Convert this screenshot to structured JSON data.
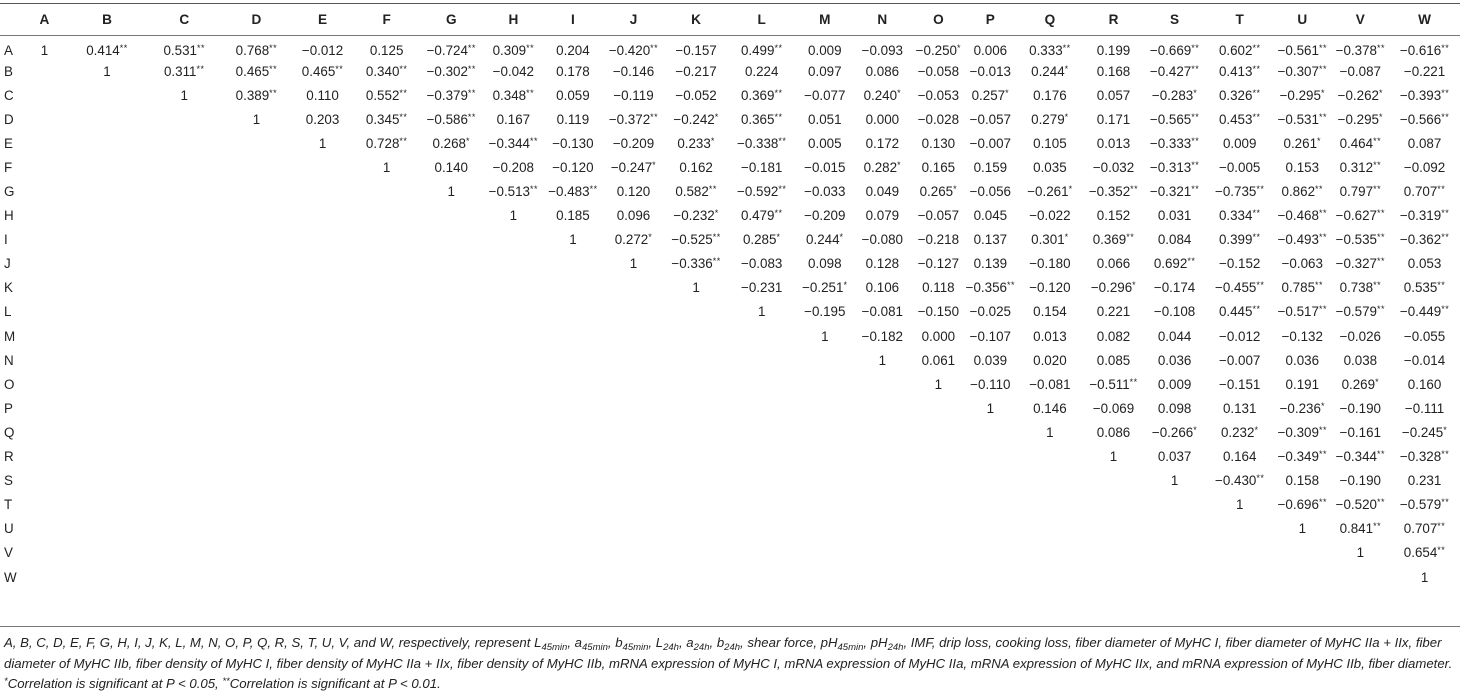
{
  "table": {
    "headers": [
      "",
      "A",
      "B",
      "C",
      "D",
      "E",
      "F",
      "G",
      "H",
      "I",
      "J",
      "K",
      "L",
      "M",
      "N",
      "O",
      "P",
      "Q",
      "R",
      "S",
      "T",
      "U",
      "V",
      "W"
    ],
    "rows": [
      {
        "label": "A",
        "cells": [
          "1",
          "0.414**",
          "0.531**",
          "0.768**",
          "−0.012",
          "0.125",
          "−0.724**",
          "0.309**",
          "0.204",
          "−0.420**",
          "−0.157",
          "0.499**",
          "0.009",
          "−0.093",
          "−0.250*",
          "0.006",
          "0.333**",
          "0.199",
          "−0.669**",
          "0.602**",
          "−0.561**",
          "−0.378**",
          "−0.616**"
        ]
      },
      {
        "label": "B",
        "cells": [
          "",
          "1",
          "0.311**",
          "0.465**",
          "0.465**",
          "0.340**",
          "−0.302**",
          "−0.042",
          "0.178",
          "−0.146",
          "−0.217",
          "0.224",
          "0.097",
          "0.086",
          "−0.058",
          "−0.013",
          "0.244*",
          "0.168",
          "−0.427**",
          "0.413**",
          "−0.307**",
          "−0.087",
          "−0.221"
        ]
      },
      {
        "label": "C",
        "cells": [
          "",
          "",
          "1",
          "0.389**",
          "0.110",
          "0.552**",
          "−0.379**",
          "0.348**",
          "0.059",
          "−0.119",
          "−0.052",
          "0.369**",
          "−0.077",
          "0.240*",
          "−0.053",
          "0.257*",
          "0.176",
          "0.057",
          "−0.283*",
          "0.326**",
          "−0.295*",
          "−0.262*",
          "−0.393**"
        ]
      },
      {
        "label": "D",
        "cells": [
          "",
          "",
          "",
          "1",
          "0.203",
          "0.345**",
          "−0.586**",
          "0.167",
          "0.119",
          "−0.372**",
          "−0.242*",
          "0.365**",
          "0.051",
          "0.000",
          "−0.028",
          "−0.057",
          "0.279*",
          "0.171",
          "−0.565**",
          "0.453**",
          "−0.531**",
          "−0.295*",
          "−0.566**"
        ]
      },
      {
        "label": "E",
        "cells": [
          "",
          "",
          "",
          "",
          "1",
          "0.728**",
          "0.268*",
          "−0.344**",
          "−0.130",
          "−0.209",
          "0.233*",
          "−0.338**",
          "0.005",
          "0.172",
          "0.130",
          "−0.007",
          "0.105",
          "0.013",
          "−0.333**",
          "0.009",
          "0.261*",
          "0.464**",
          "0.087"
        ]
      },
      {
        "label": "F",
        "cells": [
          "",
          "",
          "",
          "",
          "",
          "1",
          "0.140",
          "−0.208",
          "−0.120",
          "−0.247*",
          "0.162",
          "−0.181",
          "−0.015",
          "0.282*",
          "0.165",
          "0.159",
          "0.035",
          "−0.032",
          "−0.313**",
          "−0.005",
          "0.153",
          "0.312**",
          "−0.092"
        ]
      },
      {
        "label": "G",
        "cells": [
          "",
          "",
          "",
          "",
          "",
          "",
          "1",
          "−0.513**",
          "−0.483**",
          "0.120",
          "0.582**",
          "−0.592**",
          "−0.033",
          "0.049",
          "0.265*",
          "−0.056",
          "−0.261*",
          "−0.352**",
          "−0.321**",
          "−0.735**",
          "0.862**",
          "0.797**",
          "0.707**"
        ]
      },
      {
        "label": "H",
        "cells": [
          "",
          "",
          "",
          "",
          "",
          "",
          "",
          "1",
          "0.185",
          "0.096",
          "−0.232*",
          "0.479**",
          "−0.209",
          "0.079",
          "−0.057",
          "0.045",
          "−0.022",
          "0.152",
          "0.031",
          "0.334**",
          "−0.468**",
          "−0.627**",
          "−0.319**"
        ]
      },
      {
        "label": "I",
        "cells": [
          "",
          "",
          "",
          "",
          "",
          "",
          "",
          "",
          "1",
          "0.272*",
          "−0.525**",
          "0.285*",
          "0.244*",
          "−0.080",
          "−0.218",
          "0.137",
          "0.301*",
          "0.369**",
          "0.084",
          "0.399**",
          "−0.493**",
          "−0.535**",
          "−0.362**"
        ]
      },
      {
        "label": "J",
        "cells": [
          "",
          "",
          "",
          "",
          "",
          "",
          "",
          "",
          "",
          "1",
          "−0.336**",
          "−0.083",
          "0.098",
          "0.128",
          "−0.127",
          "0.139",
          "−0.180",
          "0.066",
          "0.692**",
          "−0.152",
          "−0.063",
          "−0.327**",
          "0.053"
        ]
      },
      {
        "label": "K",
        "cells": [
          "",
          "",
          "",
          "",
          "",
          "",
          "",
          "",
          "",
          "",
          "1",
          "−0.231",
          "−0.251*",
          "0.106",
          "0.118",
          "−0.356**",
          "−0.120",
          "−0.296*",
          "−0.174",
          "−0.455**",
          "0.785**",
          "0.738**",
          "0.535**"
        ]
      },
      {
        "label": "L",
        "cells": [
          "",
          "",
          "",
          "",
          "",
          "",
          "",
          "",
          "",
          "",
          "",
          "1",
          "−0.195",
          "−0.081",
          "−0.150",
          "−0.025",
          "0.154",
          "0.221",
          "−0.108",
          "0.445**",
          "−0.517**",
          "−0.579**",
          "−0.449**"
        ]
      },
      {
        "label": "M",
        "cells": [
          "",
          "",
          "",
          "",
          "",
          "",
          "",
          "",
          "",
          "",
          "",
          "",
          "1",
          "−0.182",
          "0.000",
          "−0.107",
          "0.013",
          "0.082",
          "0.044",
          "−0.012",
          "−0.132",
          "−0.026",
          "−0.055"
        ]
      },
      {
        "label": "N",
        "cells": [
          "",
          "",
          "",
          "",
          "",
          "",
          "",
          "",
          "",
          "",
          "",
          "",
          "",
          "1",
          "0.061",
          "0.039",
          "0.020",
          "0.085",
          "0.036",
          "−0.007",
          "0.036",
          "0.038",
          "−0.014"
        ]
      },
      {
        "label": "O",
        "cells": [
          "",
          "",
          "",
          "",
          "",
          "",
          "",
          "",
          "",
          "",
          "",
          "",
          "",
          "",
          "1",
          "−0.110",
          "−0.081",
          "−0.511**",
          "0.009",
          "−0.151",
          "0.191",
          "0.269*",
          "0.160"
        ]
      },
      {
        "label": "P",
        "cells": [
          "",
          "",
          "",
          "",
          "",
          "",
          "",
          "",
          "",
          "",
          "",
          "",
          "",
          "",
          "",
          "1",
          "0.146",
          "−0.069",
          "0.098",
          "0.131",
          "−0.236*",
          "−0.190",
          "−0.111"
        ]
      },
      {
        "label": "Q",
        "cells": [
          "",
          "",
          "",
          "",
          "",
          "",
          "",
          "",
          "",
          "",
          "",
          "",
          "",
          "",
          "",
          "",
          "1",
          "0.086",
          "−0.266*",
          "0.232*",
          "−0.309**",
          "−0.161",
          "−0.245*"
        ]
      },
      {
        "label": "R",
        "cells": [
          "",
          "",
          "",
          "",
          "",
          "",
          "",
          "",
          "",
          "",
          "",
          "",
          "",
          "",
          "",
          "",
          "",
          "1",
          "0.037",
          "0.164",
          "−0.349**",
          "−0.344**",
          "−0.328**"
        ]
      },
      {
        "label": "S",
        "cells": [
          "",
          "",
          "",
          "",
          "",
          "",
          "",
          "",
          "",
          "",
          "",
          "",
          "",
          "",
          "",
          "",
          "",
          "",
          "1",
          "−0.430**",
          "0.158",
          "−0.190",
          "0.231"
        ]
      },
      {
        "label": "T",
        "cells": [
          "",
          "",
          "",
          "",
          "",
          "",
          "",
          "",
          "",
          "",
          "",
          "",
          "",
          "",
          "",
          "",
          "",
          "",
          "",
          "1",
          "−0.696**",
          "−0.520**",
          "−0.579**"
        ]
      },
      {
        "label": "U",
        "cells": [
          "",
          "",
          "",
          "",
          "",
          "",
          "",
          "",
          "",
          "",
          "",
          "",
          "",
          "",
          "",
          "",
          "",
          "",
          "",
          "",
          "1",
          "0.841**",
          "0.707**"
        ]
      },
      {
        "label": "V",
        "cells": [
          "",
          "",
          "",
          "",
          "",
          "",
          "",
          "",
          "",
          "",
          "",
          "",
          "",
          "",
          "",
          "",
          "",
          "",
          "",
          "",
          "",
          "1",
          "0.654**"
        ]
      },
      {
        "label": "W",
        "cells": [
          "",
          "",
          "",
          "",
          "",
          "",
          "",
          "",
          "",
          "",
          "",
          "",
          "",
          "",
          "",
          "",
          "",
          "",
          "",
          "",
          "",
          "",
          "1"
        ]
      }
    ]
  },
  "footnote": {
    "intro": "A, B, C, D, E, F, G, H, I, J, K, L, M, N, O, P, Q, R, S, T, U, V, and W, respectively, represent ",
    "L45min_base": "L",
    "L45min_sub": "45min",
    "a45min_base": "a",
    "a45min_sub": "45min",
    "b45min_base": "b",
    "b45min_sub": "45min",
    "L24h_base": "L",
    "L24h_sub": "24h",
    "a24h_base": "a",
    "a24h_sub": "24h",
    "b24h_base": "b",
    "b24h_sub": "24h",
    "shear": "shear force, ",
    "pH45min_base": "pH",
    "pH45min_sub": "45min",
    "pH24h_base": "pH",
    "pH24h_sub": "24h",
    "rest": "IMF, drip loss, cooking loss, fiber diameter of MyHC I, fiber diameter of MyHC IIa + IIx, fiber diameter of MyHC IIb, fiber density of MyHC I, fiber density of MyHC IIa + IIx, fiber density of MyHC IIb, mRNA expression of MyHC I, mRNA expression of MyHC IIa, mRNA expression of MyHC IIx, and mRNA expression of MyHC IIb, fiber diameter. ",
    "sig1_mark": "*",
    "sig1_text": "Correlation is significant at P < 0.05, ",
    "sig2_mark": "**",
    "sig2_text": "Correlation is significant at P < 0.01."
  }
}
